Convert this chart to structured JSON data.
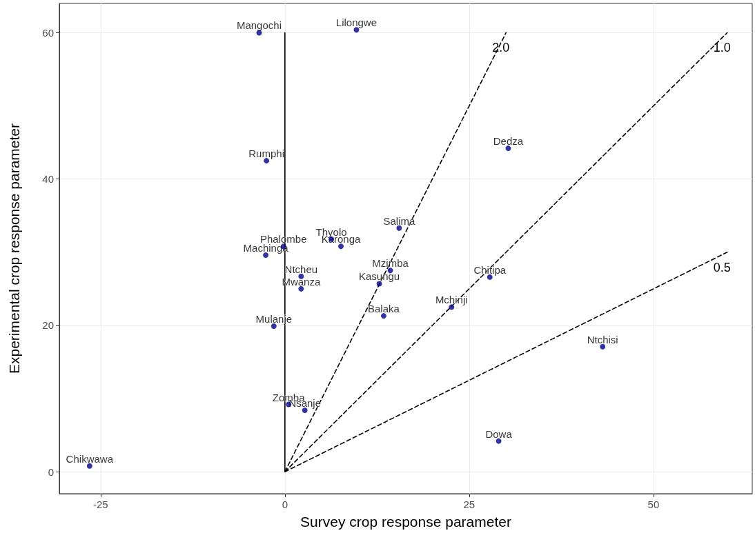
{
  "chart_data": {
    "type": "scatter",
    "xlabel": "Survey crop response parameter",
    "ylabel": "Experimental crop response parameter",
    "xlim": [
      -30.6,
      63.4
    ],
    "ylim": [
      -3,
      64
    ],
    "xticks": [
      -25,
      0,
      25,
      50
    ],
    "yticks": [
      0,
      20,
      40,
      60
    ],
    "grid": true,
    "marker": "circle",
    "series": [
      {
        "color": "#00008b",
        "x": [
          -3.5,
          9.7,
          -2.5,
          30.3,
          15.5,
          6.3,
          7.6,
          -0.2,
          -2.6,
          14.3,
          27.8,
          2.2,
          12.8,
          2.2,
          22.6,
          13.4,
          -1.5,
          43.1,
          0.5,
          2.7,
          29.0,
          -26.5
        ],
        "values": [
          60,
          60.4,
          42.5,
          44.2,
          33.3,
          31.8,
          30.8,
          30.8,
          29.6,
          27.5,
          26.6,
          26.7,
          25.7,
          25.0,
          22.5,
          21.3,
          19.9,
          17.1,
          9.2,
          8.4,
          4.2,
          0.8
        ]
      },
      {
        "type": "line",
        "color": "#000000",
        "line_style": "solid",
        "marker": "none",
        "x": [
          0,
          0
        ],
        "values": [
          0,
          60
        ]
      },
      {
        "type": "line",
        "name": "2.0",
        "color": "#000000",
        "line_style": "dashed",
        "marker": "none",
        "x": [
          0,
          30
        ],
        "values": [
          0,
          60
        ]
      },
      {
        "type": "line",
        "name": "1.0",
        "color": "#000000",
        "line_style": "dashed",
        "marker": "none",
        "x": [
          0,
          60
        ],
        "values": [
          0,
          60
        ]
      },
      {
        "type": "line",
        "name": "0.5",
        "color": "#000000",
        "line_style": "dashed",
        "marker": "none",
        "x": [
          0,
          60
        ],
        "values": [
          0,
          30
        ]
      }
    ],
    "annotations": [
      {
        "text": "Mangochi",
        "x": -3.5,
        "y": 60
      },
      {
        "text": "Lilongwe",
        "x": 9.7,
        "y": 60.4
      },
      {
        "text": "Rumphi",
        "x": -2.5,
        "y": 42.5
      },
      {
        "text": "Dedza",
        "x": 30.3,
        "y": 44.2
      },
      {
        "text": "Salima",
        "x": 15.5,
        "y": 33.3
      },
      {
        "text": "Thyolo",
        "x": 6.3,
        "y": 31.8
      },
      {
        "text": "Karonga",
        "x": 7.6,
        "y": 30.8
      },
      {
        "text": "Phalombe",
        "x": -0.2,
        "y": 30.8
      },
      {
        "text": "Machinga",
        "x": -2.6,
        "y": 29.6
      },
      {
        "text": "Mzimba",
        "x": 14.3,
        "y": 27.5
      },
      {
        "text": "Chitipa",
        "x": 27.8,
        "y": 26.6
      },
      {
        "text": "Ntcheu",
        "x": 2.2,
        "y": 26.7
      },
      {
        "text": "Kasungu",
        "x": 12.8,
        "y": 25.7
      },
      {
        "text": "Mwanza",
        "x": 2.2,
        "y": 25.0
      },
      {
        "text": "Mchinji",
        "x": 22.6,
        "y": 22.5
      },
      {
        "text": "Balaka",
        "x": 13.4,
        "y": 21.3
      },
      {
        "text": "Mulanje",
        "x": -1.5,
        "y": 19.9
      },
      {
        "text": "Ntchisi",
        "x": 43.1,
        "y": 17.1
      },
      {
        "text": "Zomba",
        "x": 0.5,
        "y": 9.2
      },
      {
        "text": "Nsanje",
        "x": 2.7,
        "y": 8.4
      },
      {
        "text": "Dowa",
        "x": 29.0,
        "y": 4.2
      },
      {
        "text": "Chikwawa",
        "x": -26.5,
        "y": 0.8
      }
    ]
  }
}
